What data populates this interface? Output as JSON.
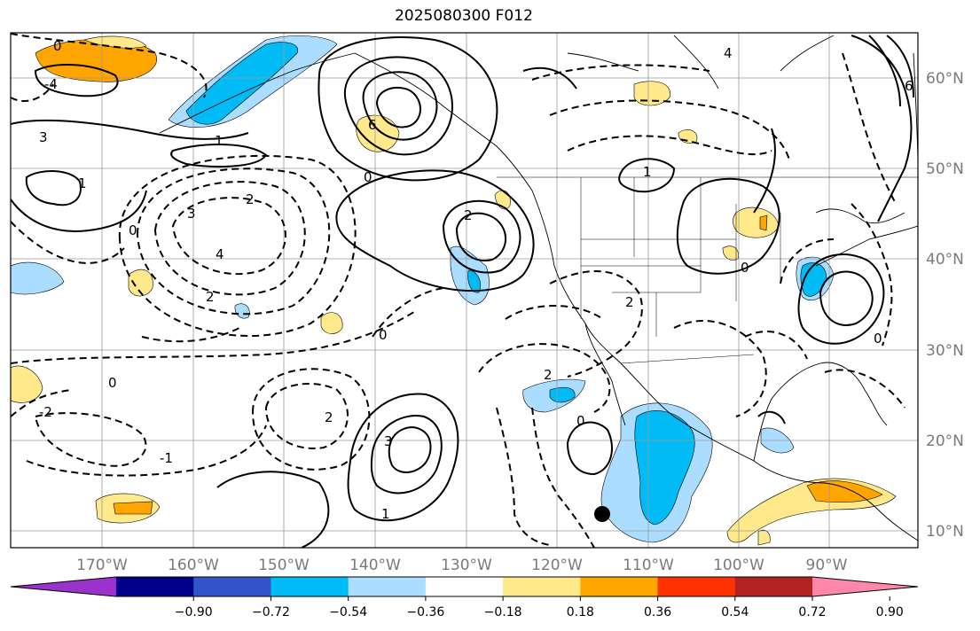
{
  "title": "2025080300 F012",
  "lon_labels": [
    "170°W",
    "160°W",
    "150°W",
    "140°W",
    "130°W",
    "120°W",
    "110°W",
    "100°W",
    "90°W"
  ],
  "lat_labels": [
    "60°N",
    "50°N",
    "40°N",
    "30°N",
    "20°N",
    "10°N"
  ],
  "colorbar": {
    "colors": [
      "#9933cc",
      "#000088",
      "#3355cc",
      "#00bbf5",
      "#aaddff",
      "#ffffff",
      "#ffe98a",
      "#ffa500",
      "#ff3300",
      "#b22222",
      "#ff88aa"
    ],
    "tick_labels": [
      "−0.90",
      "−0.72",
      "−0.54",
      "−0.36",
      "−0.18",
      "0.18",
      "0.36",
      "0.54",
      "0.72",
      "0.90"
    ]
  },
  "contour_labels": [
    "0",
    "0",
    "0",
    "0",
    "0",
    "0",
    "0",
    "0",
    "1",
    "1",
    "1",
    "1",
    "2",
    "2",
    "2",
    "2",
    "2",
    "2",
    "3",
    "3",
    "3",
    "4",
    "4",
    "6",
    "6",
    "-1",
    "-2",
    "-4"
  ],
  "colors": {
    "frame": "#000000",
    "grid": "#9a9a9a",
    "coast": "#000000"
  }
}
